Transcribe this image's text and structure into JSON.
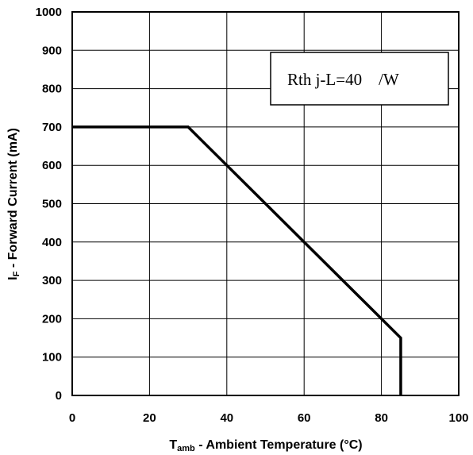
{
  "chart_data": {
    "type": "line",
    "title": "",
    "xlabel": {
      "main": "T",
      "sub": "amb",
      "rest": " - Ambient Temperature (°C)"
    },
    "ylabel": {
      "main": "I",
      "sub": "F",
      "rest": " - Forward Current (mA)"
    },
    "xlim": [
      0,
      100
    ],
    "ylim": [
      0,
      1000
    ],
    "x_ticks": [
      0,
      20,
      40,
      60,
      80,
      100
    ],
    "y_ticks": [
      0,
      100,
      200,
      300,
      400,
      500,
      600,
      700,
      800,
      900,
      1000
    ],
    "x_tick_labels": [
      "0",
      "20",
      "40",
      "60",
      "80",
      "100"
    ],
    "y_tick_labels": [
      "0",
      "100",
      "200",
      "300",
      "400",
      "500",
      "600",
      "700",
      "800",
      "900",
      "1000"
    ],
    "grid": true,
    "series": [
      {
        "x": [
          0,
          30,
          85,
          85
        ],
        "y": [
          700,
          700,
          150,
          0
        ]
      }
    ],
    "annotation": {
      "text": "Rth j-L=40    /W",
      "placement": "top-right"
    },
    "colors": {
      "line": "#000000",
      "grid": "#000000",
      "background": "#ffffff"
    }
  }
}
